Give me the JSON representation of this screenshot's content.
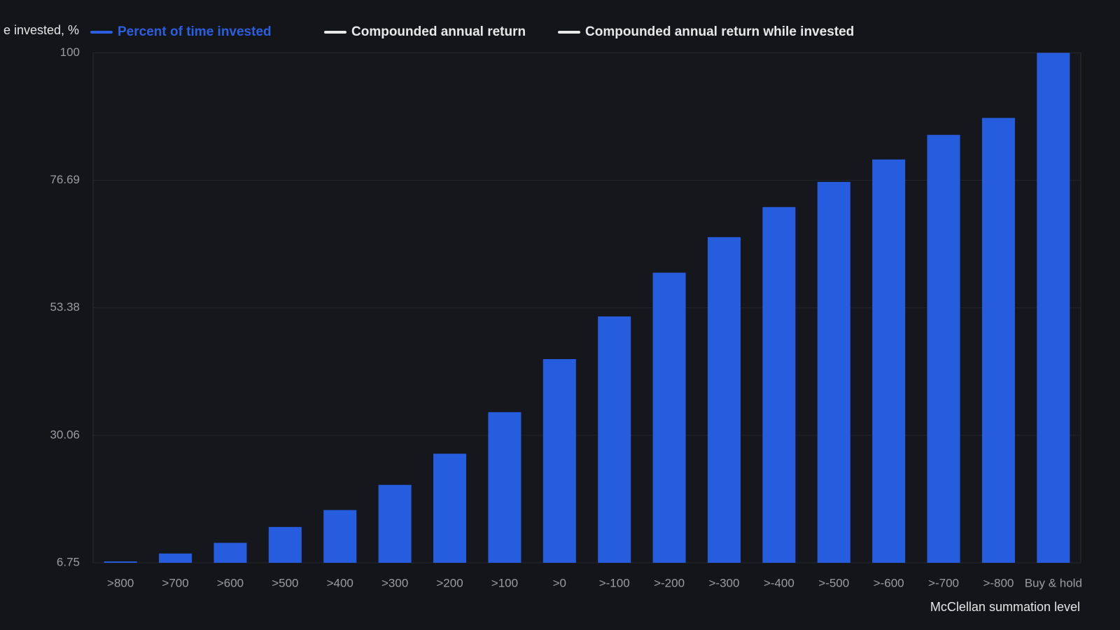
{
  "chart_data": {
    "type": "bar",
    "y_label": "e invested, %",
    "x_label": "McClellan summation level",
    "legend": [
      {
        "name": "Percent of time invested",
        "color": "#2b5fdf"
      },
      {
        "name": "Compounded annual return",
        "color": "#e8e8e8"
      },
      {
        "name": "Compounded annual return while invested",
        "color": "#e8e8e8"
      }
    ],
    "categories": [
      ">800",
      ">700",
      ">600",
      ">500",
      ">400",
      ">300",
      ">200",
      ">100",
      ">0",
      ">-100",
      ">-200",
      ">-300",
      ">-400",
      ">-500",
      ">-600",
      ">-700",
      ">-800",
      "Buy & hold"
    ],
    "series": [
      {
        "name": "Percent of time invested",
        "color": "#265ddf",
        "values": [
          7.0,
          8.45,
          10.4,
          13.3,
          16.4,
          21.0,
          26.7,
          34.3,
          44.0,
          51.8,
          59.8,
          66.3,
          71.8,
          76.4,
          80.5,
          85.0,
          88.1,
          100
        ]
      }
    ],
    "ylim": [
      6.75,
      100
    ],
    "yticks": [
      6.75,
      30.06,
      53.38,
      76.69,
      100
    ],
    "grid": true
  }
}
